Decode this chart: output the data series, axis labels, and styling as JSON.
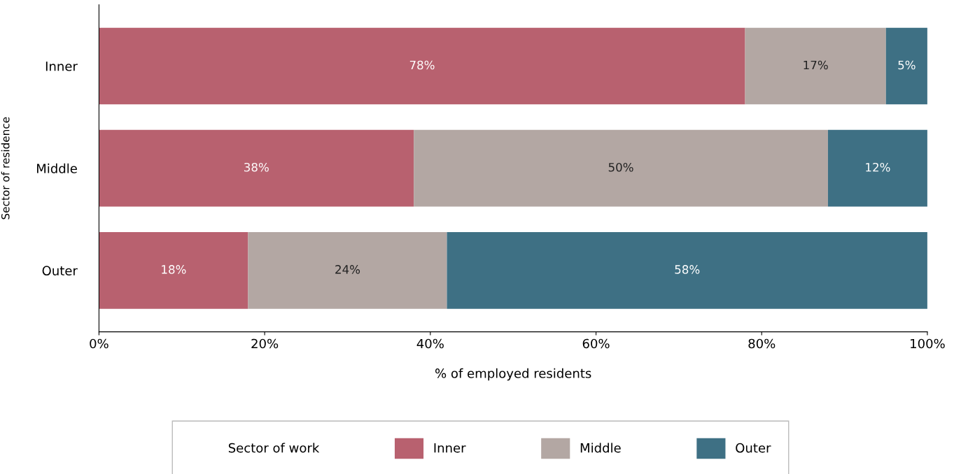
{
  "chart_data": {
    "type": "bar",
    "orientation": "horizontal",
    "stacked": true,
    "xlabel": "% of employed residents",
    "ylabel": "Sector of residence",
    "legend_title": "Sector of work",
    "legend": "bottom",
    "grid": false,
    "categories": [
      "Inner",
      "Middle",
      "Outer"
    ],
    "series": [
      {
        "name": "Inner",
        "color": "#b8616f",
        "values": [
          78,
          38,
          18
        ],
        "value_labels": [
          "78%",
          "38%",
          "18%"
        ]
      },
      {
        "name": "Middle",
        "color": "#b3a7a3",
        "values": [
          17,
          50,
          24
        ],
        "value_labels": [
          "17%",
          "50%",
          "24%"
        ]
      },
      {
        "name": "Outer",
        "color": "#3e7084",
        "values": [
          5,
          12,
          58
        ],
        "value_labels": [
          "5%",
          "12%",
          "58%"
        ]
      }
    ],
    "xlim": [
      0,
      100
    ],
    "xticks": [
      {
        "value": 0,
        "label": "0%"
      },
      {
        "value": 20,
        "label": "20%"
      },
      {
        "value": 40,
        "label": "40%"
      },
      {
        "value": 60,
        "label": "60%"
      },
      {
        "value": 80,
        "label": "80%"
      },
      {
        "value": 100,
        "label": "100%"
      }
    ]
  }
}
